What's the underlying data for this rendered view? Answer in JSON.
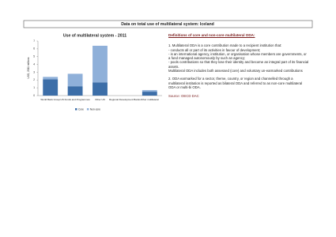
{
  "header": {
    "title": "Data on total use of multilateral system: Iceland"
  },
  "chart_data": {
    "type": "bar",
    "stacked": true,
    "title": "Use of multilateral system - 2011",
    "y_label": "USD, 2011 millions",
    "categories": [
      "World Bank Group",
      "UN Funds and Programmes",
      "Other UN",
      "Regional Development Banks",
      "Other multilateral"
    ],
    "series": [
      {
        "name": "Core",
        "color": "#3c6ea8",
        "values": [
          2.1,
          1.2,
          1.7,
          0,
          0.5
        ]
      },
      {
        "name": "Non-core",
        "color": "#8fb0d9",
        "values": [
          0.3,
          1.6,
          4.7,
          0,
          0.2
        ]
      }
    ],
    "ylim": [
      0,
      7
    ],
    "yticks": [
      0,
      1,
      2,
      3,
      4,
      5,
      6,
      7
    ],
    "grid": false
  },
  "definitions": {
    "title": "Definitions of core and non-core multilateral ODA:",
    "paragraphs": [
      "1. Multilateral ODA is a core contribution made to a recipient institution that:\n- conducts all or part of its activities in favour of development;\n- is an international agency, institution, or organisation whose members are governments, or a fund managed autonomously by such an agency;\n- pools contributions so that they lose their identity and become an integral part of its financial assets.\nMultilateral ODA includes both assessed (core) and voluntary un-earmarked contributions",
      "2. ODA earmarked for a sector, theme, country, or region and channelled through a multilateral institution is reported as bilateral ODA and referred to as non-core multilateral ODA or multi-bi ODA."
    ],
    "source": "Source: OECD DAC"
  }
}
